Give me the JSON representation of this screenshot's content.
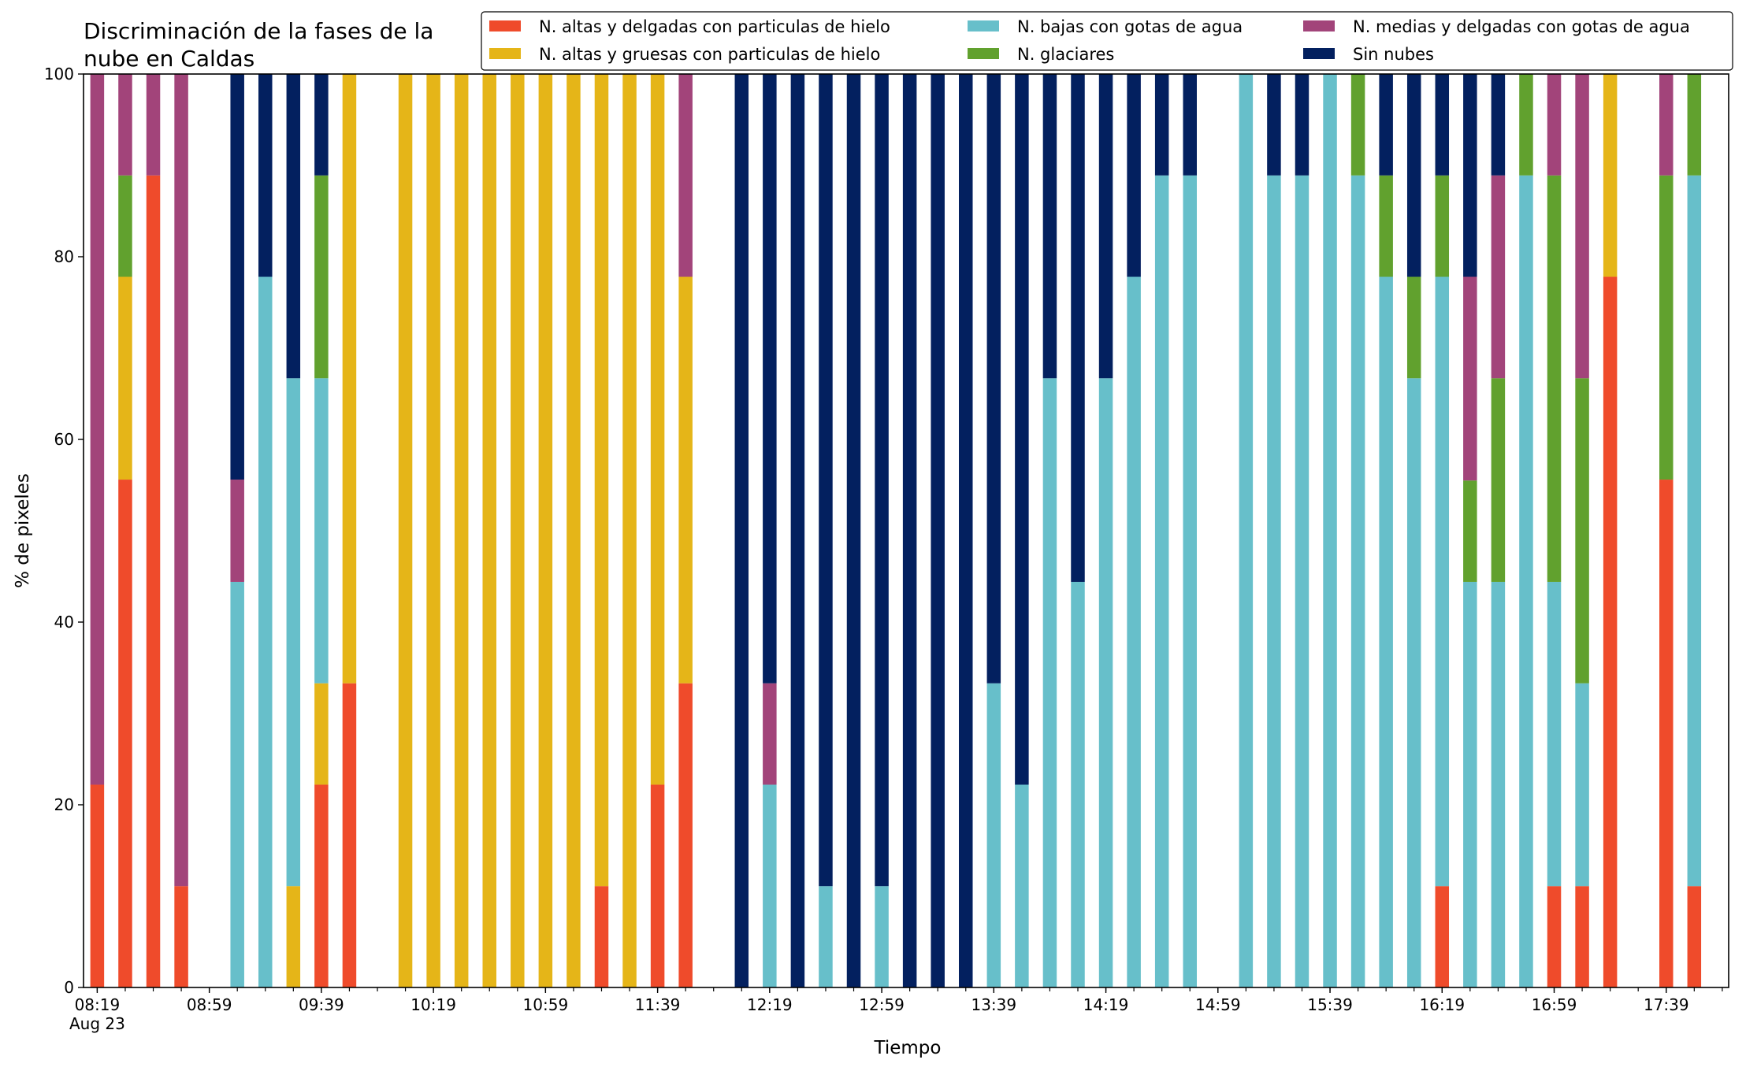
{
  "chart_data": {
    "type": "bar",
    "stacked": true,
    "title": "Discriminación de la fases de la nube en Caldas",
    "title_lines": [
      "Discriminación de la fases de la",
      "nube en Caldas"
    ],
    "xlabel": "Tiempo",
    "ylabel": "% de pixeles",
    "ylim": [
      0,
      100
    ],
    "yticks": [
      "0",
      "20",
      "40",
      "60",
      "80",
      "100"
    ],
    "xlim": [
      0,
      59
    ],
    "xticks": [
      {
        "x": 0,
        "label": "08:19",
        "sublabel": "Aug 23"
      },
      {
        "x": 4,
        "label": "08:59"
      },
      {
        "x": 8,
        "label": "09:39"
      },
      {
        "x": 12,
        "label": "10:19"
      },
      {
        "x": 16,
        "label": "10:59"
      },
      {
        "x": 20,
        "label": "11:39"
      },
      {
        "x": 24,
        "label": "12:19"
      },
      {
        "x": 28,
        "label": "12:59"
      },
      {
        "x": 32,
        "label": "13:39"
      },
      {
        "x": 36,
        "label": "14:19"
      },
      {
        "x": 40,
        "label": "14:59"
      },
      {
        "x": 44,
        "label": "15:39"
      },
      {
        "x": 48,
        "label": "16:19"
      },
      {
        "x": 52,
        "label": "16:59"
      },
      {
        "x": 56,
        "label": "17:39"
      }
    ],
    "grid": false,
    "legend_position": "top-right",
    "legend_columns": 3,
    "x": [
      0,
      1,
      2,
      3,
      5,
      6,
      7,
      8,
      9,
      11,
      12,
      13,
      14,
      15,
      16,
      17,
      18,
      19,
      20,
      21,
      23,
      24,
      25,
      26,
      27,
      28,
      29,
      30,
      31,
      32,
      33,
      34,
      35,
      36,
      37,
      38,
      39,
      41,
      42,
      43,
      44,
      45,
      46,
      47,
      48,
      49,
      50,
      51,
      52,
      53,
      54,
      56,
      57
    ],
    "series": [
      {
        "name": "N. altas y delgadas con particulas de hielo",
        "color": "#EF4B2B",
        "values": [
          22.2,
          55.6,
          88.9,
          11.1,
          0,
          0,
          0,
          22.2,
          33.3,
          0,
          0,
          0,
          0,
          0,
          0,
          0,
          11.1,
          0,
          22.2,
          33.3,
          0,
          0,
          0,
          0,
          0,
          0,
          0,
          0,
          0,
          0,
          0,
          0,
          0,
          0,
          0,
          0,
          0,
          0,
          0,
          0,
          0,
          0,
          0,
          0,
          11.1,
          0,
          0,
          0,
          11.1,
          11.1,
          77.8,
          55.6,
          11.1
        ]
      },
      {
        "name": "N. altas y gruesas con particulas de hielo",
        "color": "#E5B518",
        "values": [
          0,
          22.2,
          0,
          0,
          0,
          0,
          11.1,
          11.1,
          66.7,
          100,
          100,
          100,
          100,
          100,
          100,
          100,
          88.9,
          100,
          77.8,
          44.5,
          0,
          0,
          0,
          0,
          0,
          0,
          0,
          0,
          0,
          0,
          0,
          0,
          0,
          0,
          0,
          0,
          0,
          0,
          0,
          0,
          0,
          0,
          0,
          0,
          0,
          0,
          0,
          0,
          0,
          0,
          22.2,
          0,
          0
        ]
      },
      {
        "name": "N. bajas con gotas de agua",
        "color": "#67BFCA",
        "values": [
          0,
          0,
          0,
          0,
          44.4,
          77.8,
          55.6,
          33.4,
          0,
          0,
          0,
          0,
          0,
          0,
          0,
          0,
          0,
          0,
          0,
          0,
          0,
          22.2,
          0,
          11.1,
          0,
          11.1,
          0,
          0,
          0,
          33.3,
          22.2,
          66.7,
          44.4,
          66.7,
          77.8,
          88.9,
          88.9,
          100,
          88.9,
          88.9,
          100,
          88.9,
          77.8,
          66.7,
          66.7,
          44.4,
          44.4,
          88.9,
          33.3,
          22.2,
          0,
          0,
          77.8
        ]
      },
      {
        "name": "N. glaciares",
        "color": "#61A12E",
        "values": [
          0,
          11.1,
          0,
          0,
          0,
          0,
          0,
          22.2,
          0,
          0,
          0,
          0,
          0,
          0,
          0,
          0,
          0,
          0,
          0,
          0,
          0,
          0,
          0,
          0,
          0,
          0,
          0,
          0,
          0,
          0,
          0,
          0,
          0,
          0,
          0,
          0,
          0,
          0,
          0,
          0,
          0,
          11.1,
          11.1,
          11.1,
          11.1,
          11.1,
          22.3,
          11.1,
          44.5,
          33.4,
          0,
          33.3,
          11.1
        ]
      },
      {
        "name": "N. medias y delgadas con gotas de agua",
        "color": "#A2447A",
        "values": [
          77.8,
          11.1,
          11.1,
          88.9,
          11.2,
          0,
          0,
          0,
          0,
          0,
          0,
          0,
          0,
          0,
          0,
          0,
          0,
          0,
          0,
          22.2,
          0,
          11.1,
          0,
          0,
          0,
          0,
          0,
          0,
          0,
          0,
          0,
          0,
          0,
          0,
          0,
          0,
          0,
          0,
          0,
          0,
          0,
          0,
          0,
          0,
          0,
          22.3,
          22.2,
          0,
          11.1,
          33.3,
          0,
          11.1,
          0
        ]
      },
      {
        "name": "Sin nubes",
        "color": "#03205F",
        "values": [
          0,
          0,
          0,
          0,
          44.4,
          22.2,
          33.3,
          11.1,
          0,
          0,
          0,
          0,
          0,
          0,
          0,
          0,
          0,
          0,
          0,
          0,
          100,
          66.7,
          100,
          88.9,
          100,
          88.9,
          100,
          100,
          100,
          66.7,
          77.8,
          33.3,
          55.6,
          33.3,
          22.2,
          11.1,
          11.1,
          0,
          11.1,
          11.1,
          0,
          0,
          11.1,
          22.2,
          11.1,
          22.2,
          11.1,
          0,
          0,
          0,
          0,
          0,
          0
        ]
      }
    ]
  }
}
